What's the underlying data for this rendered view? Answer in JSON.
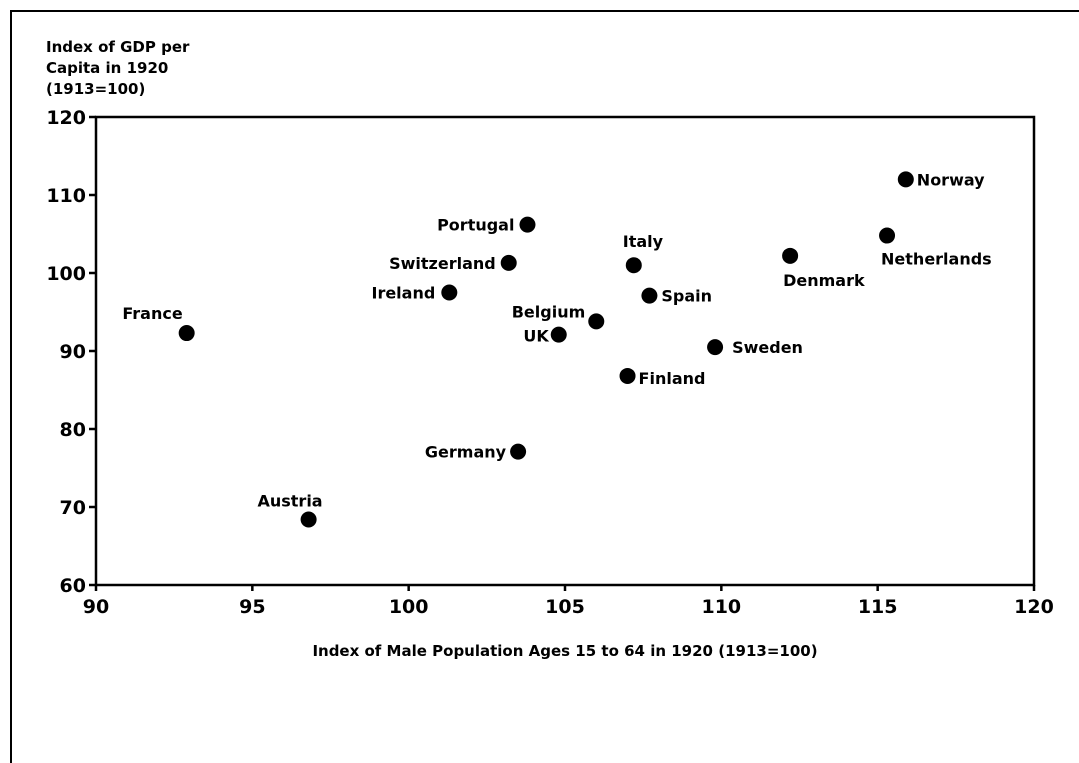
{
  "chart_data": {
    "type": "scatter",
    "title": "",
    "ylabel_lines": [
      "Index of GDP per",
      "Capita in 1920",
      "(1913=100)"
    ],
    "xlabel": "Index of Male Population Ages 15 to 64 in 1920 (1913=100)",
    "xlim": [
      90,
      120
    ],
    "ylim": [
      60,
      120
    ],
    "x_ticks": [
      90,
      95,
      100,
      105,
      110,
      115,
      120
    ],
    "x_tick_labels": [
      "90",
      "95",
      "100",
      "105",
      "110",
      "115",
      "120"
    ],
    "y_ticks": [
      60,
      70,
      80,
      90,
      100,
      110,
      120
    ],
    "y_tick_labels": [
      "60",
      "70",
      "80",
      "90",
      "100",
      "110",
      "120"
    ],
    "grid": false,
    "points": [
      {
        "label": "France",
        "x": 92.9,
        "y": 92.3
      },
      {
        "label": "Austria",
        "x": 96.8,
        "y": 68.4
      },
      {
        "label": "Ireland",
        "x": 101.3,
        "y": 97.5
      },
      {
        "label": "Switzerland",
        "x": 103.2,
        "y": 101.3
      },
      {
        "label": "Portugal",
        "x": 103.8,
        "y": 106.2
      },
      {
        "label": "Germany",
        "x": 103.5,
        "y": 77.1
      },
      {
        "label": "Belgium",
        "x": 106.0,
        "y": 93.8
      },
      {
        "label": "UK",
        "x": 104.8,
        "y": 92.1
      },
      {
        "label": "Italy",
        "x": 107.2,
        "y": 101.0
      },
      {
        "label": "Spain",
        "x": 107.7,
        "y": 97.1
      },
      {
        "label": "Finland",
        "x": 107.0,
        "y": 86.8
      },
      {
        "label": "Sweden",
        "x": 109.8,
        "y": 90.5
      },
      {
        "label": "Denmark",
        "x": 112.2,
        "y": 102.2
      },
      {
        "label": "Netherlands",
        "x": 115.3,
        "y": 104.8
      },
      {
        "label": "Norway",
        "x": 115.9,
        "y": 112.0
      }
    ]
  }
}
